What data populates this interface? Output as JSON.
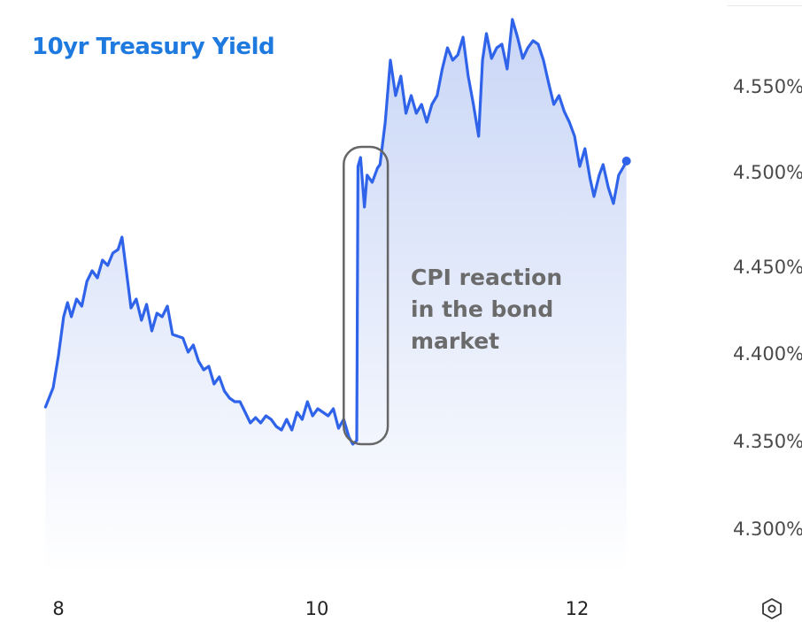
{
  "colors": {
    "line": "#2f63ea",
    "fill_top": "#c9d6f6",
    "fill_bottom": "#ffffff",
    "title": "#1f7ae0",
    "highlight_box": "#666666"
  },
  "icons": {
    "settings": "settings-hex-icon"
  },
  "chart_data": {
    "type": "area",
    "title": "10yr Treasury Yield",
    "annotation": [
      "CPI reaction",
      "in the bond",
      "market"
    ],
    "xlabel": "",
    "ylabel": "",
    "x_tick_labels": [
      "8",
      "10",
      "12"
    ],
    "y_tick_labels": [
      "4.300%",
      "4.350%",
      "4.400%",
      "4.450%",
      "4.500%",
      "4.550%"
    ],
    "xlim": [
      7.9,
      13.35
    ],
    "ylim": [
      4.265,
      4.595
    ],
    "grid": false,
    "highlight_x_range": [
      10.2,
      10.54
    ],
    "series": [
      {
        "values": [
          [
            7.9,
            4.369
          ],
          [
            7.96,
            4.38
          ],
          [
            8.0,
            4.398
          ],
          [
            8.04,
            4.42
          ],
          [
            8.07,
            4.428
          ],
          [
            8.1,
            4.42
          ],
          [
            8.14,
            4.43
          ],
          [
            8.18,
            4.426
          ],
          [
            8.22,
            4.44
          ],
          [
            8.26,
            4.446
          ],
          [
            8.3,
            4.442
          ],
          [
            8.34,
            4.452
          ],
          [
            8.38,
            4.449
          ],
          [
            8.42,
            4.456
          ],
          [
            8.46,
            4.458
          ],
          [
            8.49,
            4.465
          ],
          [
            8.52,
            4.448
          ],
          [
            8.56,
            4.425
          ],
          [
            8.6,
            4.43
          ],
          [
            8.64,
            4.418
          ],
          [
            8.68,
            4.427
          ],
          [
            8.72,
            4.412
          ],
          [
            8.76,
            4.422
          ],
          [
            8.8,
            4.42
          ],
          [
            8.84,
            4.426
          ],
          [
            8.88,
            4.41
          ],
          [
            8.92,
            4.409
          ],
          [
            8.96,
            4.408
          ],
          [
            9.0,
            4.4
          ],
          [
            9.04,
            4.404
          ],
          [
            9.08,
            4.395
          ],
          [
            9.12,
            4.39
          ],
          [
            9.16,
            4.392
          ],
          [
            9.2,
            4.382
          ],
          [
            9.24,
            4.386
          ],
          [
            9.28,
            4.378
          ],
          [
            9.32,
            4.374
          ],
          [
            9.36,
            4.372
          ],
          [
            9.4,
            4.372
          ],
          [
            9.44,
            4.366
          ],
          [
            9.48,
            4.36
          ],
          [
            9.52,
            4.363
          ],
          [
            9.56,
            4.36
          ],
          [
            9.6,
            4.364
          ],
          [
            9.64,
            4.362
          ],
          [
            9.68,
            4.358
          ],
          [
            9.72,
            4.356
          ],
          [
            9.76,
            4.362
          ],
          [
            9.8,
            4.356
          ],
          [
            9.84,
            4.366
          ],
          [
            9.88,
            4.362
          ],
          [
            9.92,
            4.372
          ],
          [
            9.96,
            4.364
          ],
          [
            10.0,
            4.368
          ],
          [
            10.04,
            4.366
          ],
          [
            10.08,
            4.364
          ],
          [
            10.12,
            4.368
          ],
          [
            10.16,
            4.357
          ],
          [
            10.2,
            4.362
          ],
          [
            10.24,
            4.352
          ],
          [
            10.27,
            4.348
          ],
          [
            10.3,
            4.35
          ],
          [
            10.31,
            4.505
          ],
          [
            10.33,
            4.51
          ],
          [
            10.36,
            4.482
          ],
          [
            10.38,
            4.5
          ],
          [
            10.42,
            4.496
          ],
          [
            10.46,
            4.504
          ],
          [
            10.48,
            4.506
          ],
          [
            10.52,
            4.53
          ],
          [
            10.56,
            4.565
          ],
          [
            10.6,
            4.545
          ],
          [
            10.64,
            4.556
          ],
          [
            10.68,
            4.535
          ],
          [
            10.72,
            4.545
          ],
          [
            10.76,
            4.535
          ],
          [
            10.8,
            4.54
          ],
          [
            10.84,
            4.53
          ],
          [
            10.88,
            4.54
          ],
          [
            10.92,
            4.545
          ],
          [
            10.96,
            4.56
          ],
          [
            11.0,
            4.572
          ],
          [
            11.04,
            4.565
          ],
          [
            11.08,
            4.568
          ],
          [
            11.12,
            4.578
          ],
          [
            11.16,
            4.556
          ],
          [
            11.2,
            4.54
          ],
          [
            11.24,
            4.522
          ],
          [
            11.27,
            4.565
          ],
          [
            11.3,
            4.58
          ],
          [
            11.34,
            4.566
          ],
          [
            11.38,
            4.572
          ],
          [
            11.42,
            4.574
          ],
          [
            11.46,
            4.56
          ],
          [
            11.5,
            4.588
          ],
          [
            11.54,
            4.578
          ],
          [
            11.58,
            4.566
          ],
          [
            11.62,
            4.572
          ],
          [
            11.66,
            4.576
          ],
          [
            11.7,
            4.574
          ],
          [
            11.74,
            4.565
          ],
          [
            11.78,
            4.552
          ],
          [
            11.82,
            4.54
          ],
          [
            11.86,
            4.545
          ],
          [
            11.9,
            4.536
          ],
          [
            11.94,
            4.53
          ],
          [
            11.98,
            4.522
          ],
          [
            12.02,
            4.505
          ],
          [
            12.06,
            4.515
          ],
          [
            12.1,
            4.498
          ],
          [
            12.13,
            4.488
          ],
          [
            12.17,
            4.5
          ],
          [
            12.2,
            4.506
          ],
          [
            12.24,
            4.493
          ],
          [
            12.28,
            4.484
          ],
          [
            12.32,
            4.5
          ],
          [
            12.36,
            4.505
          ],
          [
            12.38,
            4.508
          ]
        ]
      }
    ]
  }
}
